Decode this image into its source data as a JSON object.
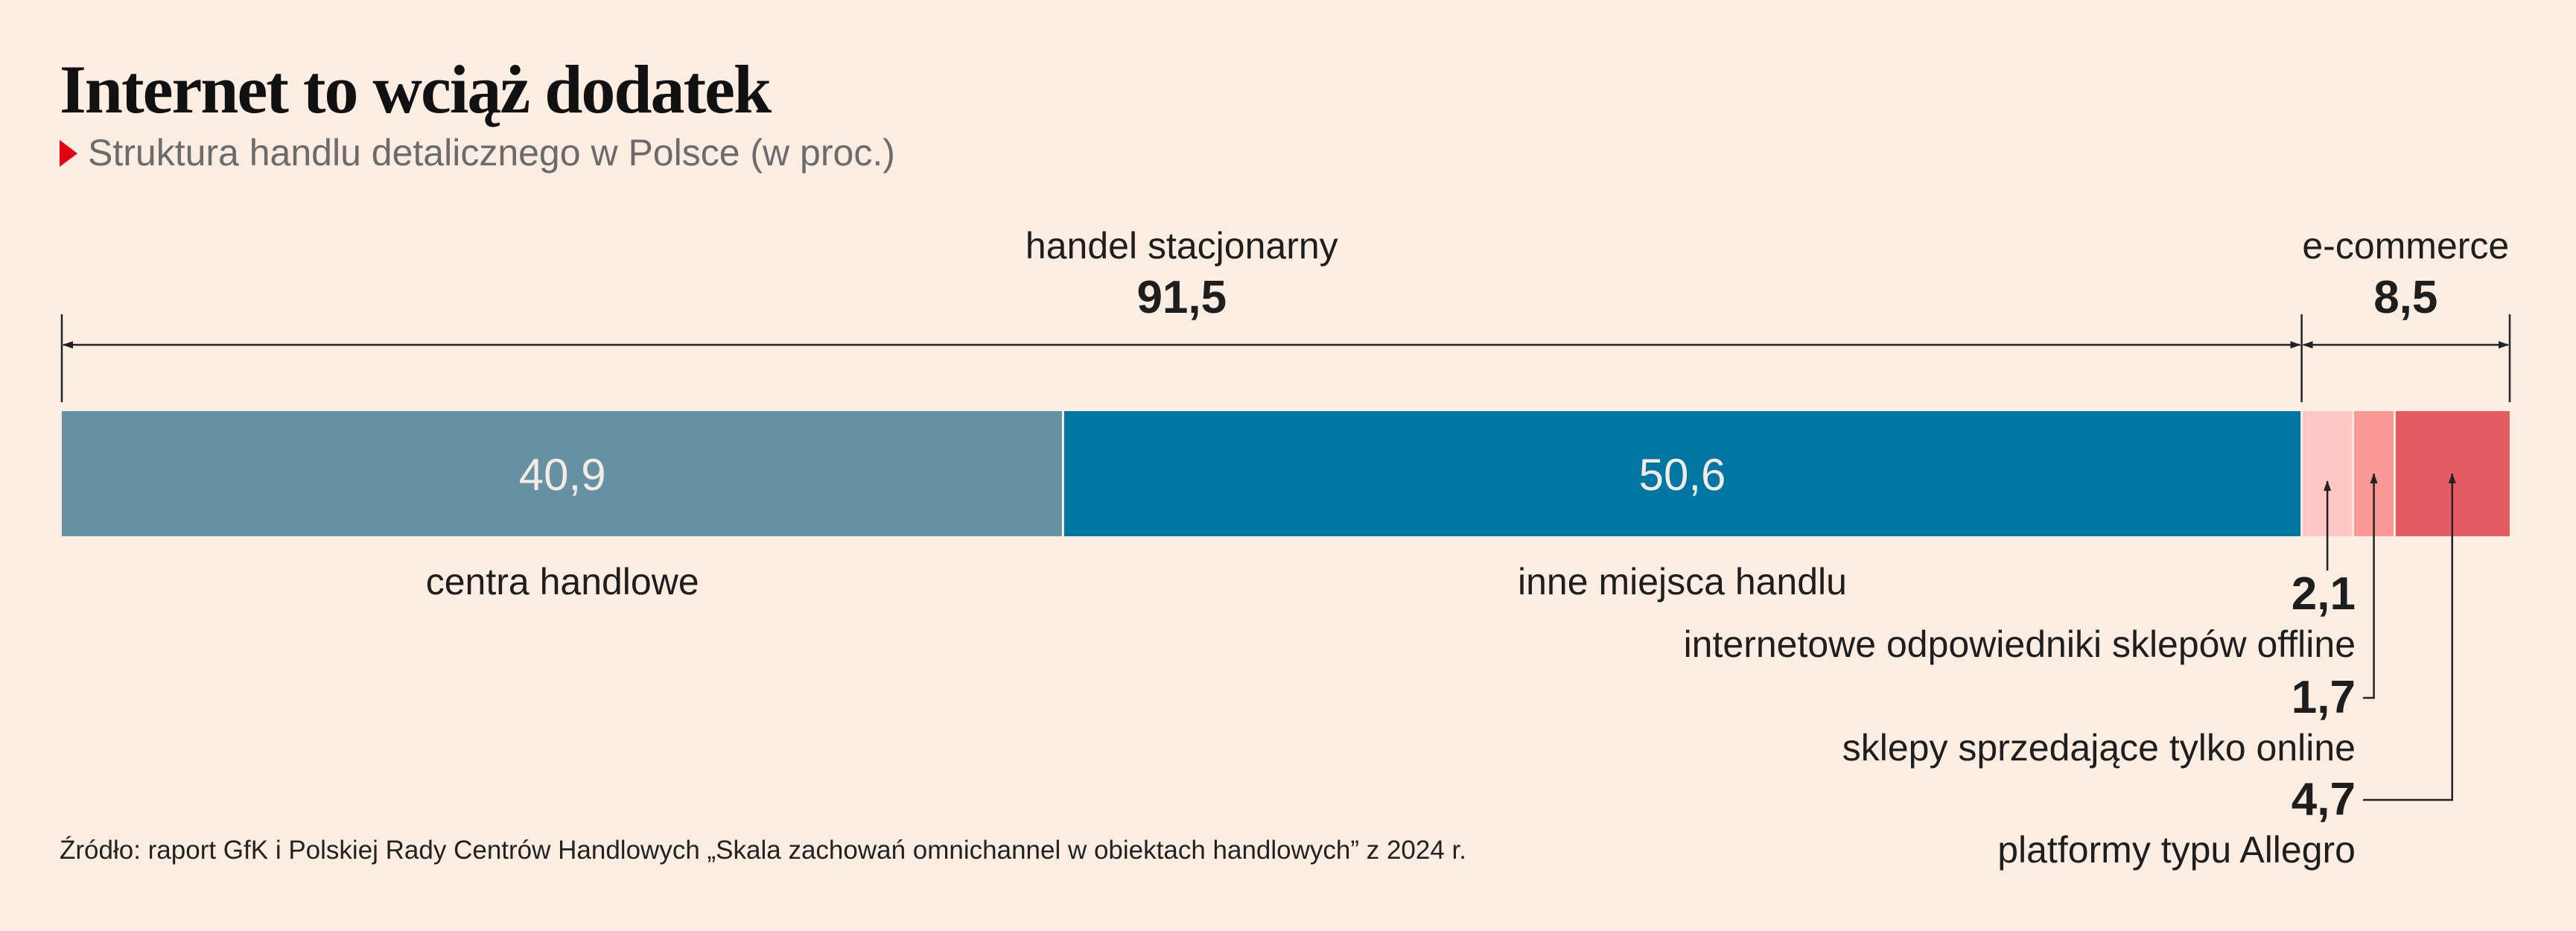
{
  "title": "Internet to wciąż dodatek",
  "subtitle": "Struktura handlu detalicznego w Polsce (w proc.)",
  "source": "Źródło: raport GfK i Polskiej Rady Centrów Handlowych „Skala zachowań omnichannel w obiektach handlowych” z 2024 r.",
  "chart_data": {
    "type": "bar",
    "orientation": "horizontal-stacked",
    "total": 100,
    "groups": [
      {
        "label": "handel stacjonarny",
        "value": "91,5",
        "numeric": 91.5
      },
      {
        "label": "e-commerce",
        "value": "8,5",
        "numeric": 8.5
      }
    ],
    "segments": [
      {
        "label": "centra handlowe",
        "value": "40,9",
        "numeric": 40.9,
        "color": "#6591a2"
      },
      {
        "label": "inne miejsca handlu",
        "value": "50,6",
        "numeric": 50.6,
        "color": "#0076a3"
      },
      {
        "label": "internetowe odpowiedniki sklepów offline",
        "value": "2,1",
        "numeric": 2.1,
        "color": "#fdc7c5"
      },
      {
        "label": "sklepy sprzedające tylko online",
        "value": "1,7",
        "numeric": 1.7,
        "color": "#fa9895"
      },
      {
        "label": "platformy typu Allegro",
        "value": "4,7",
        "numeric": 4.7,
        "color": "#e45b61"
      }
    ]
  }
}
